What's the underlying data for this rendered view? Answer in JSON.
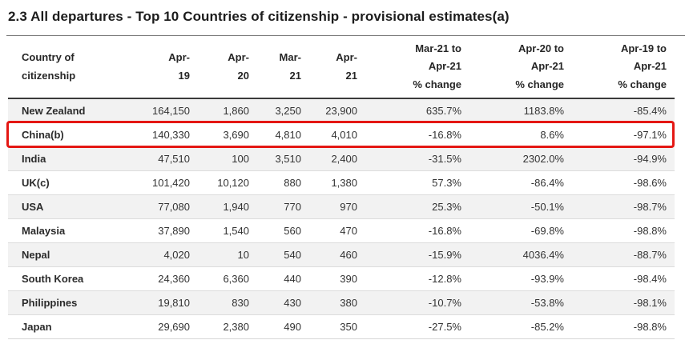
{
  "title": "2.3 All departures - Top 10 Countries of citizenship - provisional estimates(a)",
  "table": {
    "columns": [
      "Country of\ncitizenship",
      "Apr-\n19",
      "Apr-\n20",
      "Mar-\n21",
      "Apr-\n21",
      "Mar-21 to\nApr-21\n% change",
      "Apr-20 to\nApr-21\n% change",
      "Apr-19 to\nApr-21\n% change"
    ],
    "rows": [
      {
        "country": "New Zealand",
        "apr19": "164,150",
        "apr20": "1,860",
        "mar21": "3,250",
        "apr21": "23,900",
        "chg_mar21_apr21": "635.7%",
        "chg_apr20_apr21": "1183.8%",
        "chg_apr19_apr21": "-85.4%",
        "highlighted": false
      },
      {
        "country": "China(b)",
        "apr19": "140,330",
        "apr20": "3,690",
        "mar21": "4,810",
        "apr21": "4,010",
        "chg_mar21_apr21": "-16.8%",
        "chg_apr20_apr21": "8.6%",
        "chg_apr19_apr21": "-97.1%",
        "highlighted": true
      },
      {
        "country": "India",
        "apr19": "47,510",
        "apr20": "100",
        "mar21": "3,510",
        "apr21": "2,400",
        "chg_mar21_apr21": "-31.5%",
        "chg_apr20_apr21": "2302.0%",
        "chg_apr19_apr21": "-94.9%",
        "highlighted": false
      },
      {
        "country": "UK(c)",
        "apr19": "101,420",
        "apr20": "10,120",
        "mar21": "880",
        "apr21": "1,380",
        "chg_mar21_apr21": "57.3%",
        "chg_apr20_apr21": "-86.4%",
        "chg_apr19_apr21": "-98.6%",
        "highlighted": false
      },
      {
        "country": "USA",
        "apr19": "77,080",
        "apr20": "1,940",
        "mar21": "770",
        "apr21": "970",
        "chg_mar21_apr21": "25.3%",
        "chg_apr20_apr21": "-50.1%",
        "chg_apr19_apr21": "-98.7%",
        "highlighted": false
      },
      {
        "country": "Malaysia",
        "apr19": "37,890",
        "apr20": "1,540",
        "mar21": "560",
        "apr21": "470",
        "chg_mar21_apr21": "-16.8%",
        "chg_apr20_apr21": "-69.8%",
        "chg_apr19_apr21": "-98.8%",
        "highlighted": false
      },
      {
        "country": "Nepal",
        "apr19": "4,020",
        "apr20": "10",
        "mar21": "540",
        "apr21": "460",
        "chg_mar21_apr21": "-15.9%",
        "chg_apr20_apr21": "4036.4%",
        "chg_apr19_apr21": "-88.7%",
        "highlighted": false
      },
      {
        "country": "South Korea",
        "apr19": "24,360",
        "apr20": "6,360",
        "mar21": "440",
        "apr21": "390",
        "chg_mar21_apr21": "-12.8%",
        "chg_apr20_apr21": "-93.9%",
        "chg_apr19_apr21": "-98.4%",
        "highlighted": false
      },
      {
        "country": "Philippines",
        "apr19": "19,810",
        "apr20": "830",
        "mar21": "430",
        "apr21": "380",
        "chg_mar21_apr21": "-10.7%",
        "chg_apr20_apr21": "-53.8%",
        "chg_apr19_apr21": "-98.1%",
        "highlighted": false
      },
      {
        "country": "Japan",
        "apr19": "29,690",
        "apr20": "2,380",
        "mar21": "490",
        "apr21": "350",
        "chg_mar21_apr21": "-27.5%",
        "chg_apr20_apr21": "-85.2%",
        "chg_apr19_apr21": "-98.8%",
        "highlighted": false
      }
    ]
  },
  "annotation": {
    "highlighted_row": "China(b)",
    "highlight_color": "#e41713"
  },
  "colors": {
    "zebra_row": "#f2f2f2",
    "text": "#262626",
    "header_rule": "#3a3a3a",
    "title_rule": "#7a7a7a",
    "row_divider": "#dcdcdc"
  }
}
